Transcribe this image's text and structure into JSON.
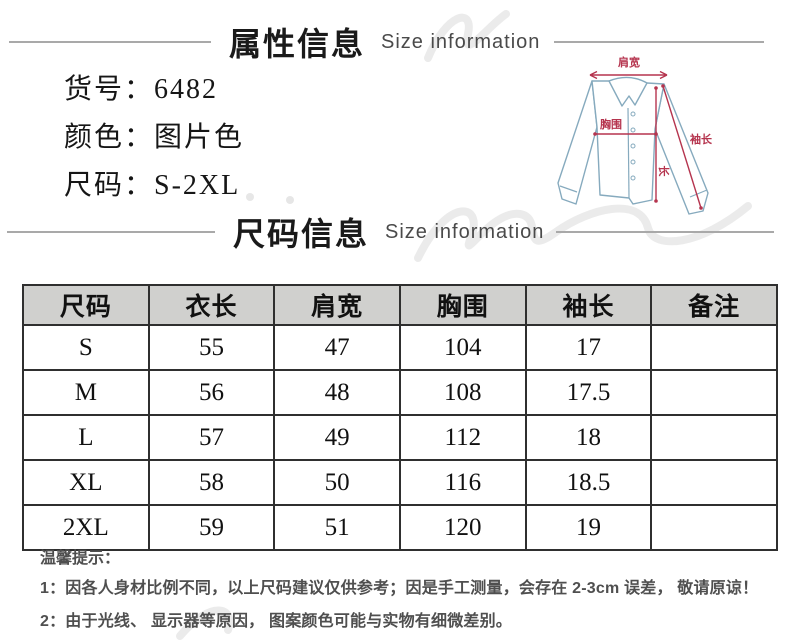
{
  "header_attr": {
    "title_cn": "属性信息",
    "title_en": "Size information"
  },
  "product_info": [
    {
      "label": "货号：",
      "value": "6482"
    },
    {
      "label": "颜色：",
      "value": "图片色"
    },
    {
      "label": "尺码：",
      "value": "S-2XL"
    }
  ],
  "diagram_labels": {
    "shoulder": "肩宽",
    "chest": "胸围",
    "length": "长",
    "sleeve": "袖长"
  },
  "header_size": {
    "title_cn": "尺码信息",
    "title_en": "Size information"
  },
  "size_table": {
    "columns": [
      "尺码",
      "衣长",
      "肩宽",
      "胸围",
      "袖长",
      "备注"
    ],
    "rows": [
      [
        "S",
        "55",
        "47",
        "104",
        "17",
        ""
      ],
      [
        "M",
        "56",
        "48",
        "108",
        "17.5",
        ""
      ],
      [
        "L",
        "57",
        "49",
        "112",
        "18",
        ""
      ],
      [
        "XL",
        "58",
        "50",
        "116",
        "18.5",
        ""
      ],
      [
        "2XL",
        "59",
        "51",
        "120",
        "19",
        ""
      ]
    ]
  },
  "notes": {
    "title": "温馨提示：",
    "items": [
      "1：因各人身材比例不同，以上尺码建议仅供参考；因是手工测量，会存在 2-3cm 误差， 敬请原谅！",
      "2：由于光线、 显示器等原因， 图案颜色可能与实物有细微差别。"
    ]
  },
  "colors": {
    "accent_red": "#b5344e",
    "shirt_outline": "#86aabe",
    "table_header_bg": "#d0d0ce",
    "table_border": "#2f2f2f",
    "divider_gray": "#a9a9a9",
    "subtitle_gray": "#4a4a4a",
    "note_gray": "#4f4f4f",
    "watermark_gray": "#e4e4e4"
  }
}
